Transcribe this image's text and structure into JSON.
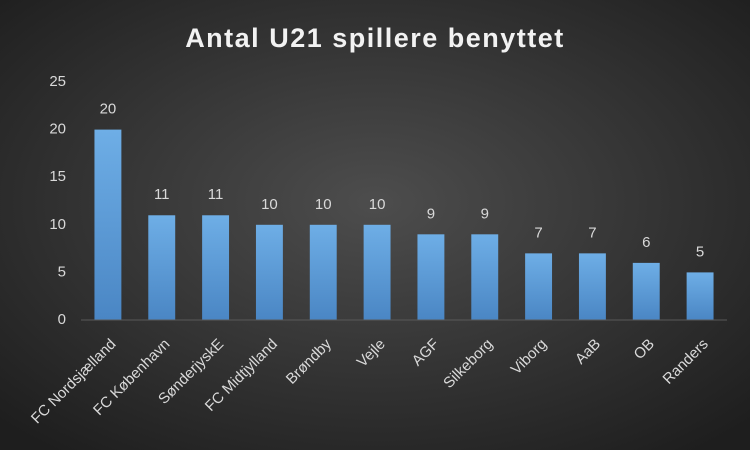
{
  "chart_data": {
    "type": "bar",
    "title": "Antal U21 spillere benyttet",
    "categories": [
      "FC Nordsjælland",
      "FC København",
      "SønderjyskE",
      "FC Midtjylland",
      "Brøndby",
      "Vejle",
      "AGF",
      "Silkeborg",
      "Viborg",
      "AaB",
      "OB",
      "Randers"
    ],
    "values": [
      20,
      11,
      11,
      10,
      10,
      10,
      9,
      9,
      7,
      7,
      6,
      5
    ],
    "color": "#5b9bd5",
    "ylim": [
      0,
      25
    ],
    "yticks": [
      0,
      5,
      10,
      15,
      20,
      25
    ],
    "grid": false
  }
}
